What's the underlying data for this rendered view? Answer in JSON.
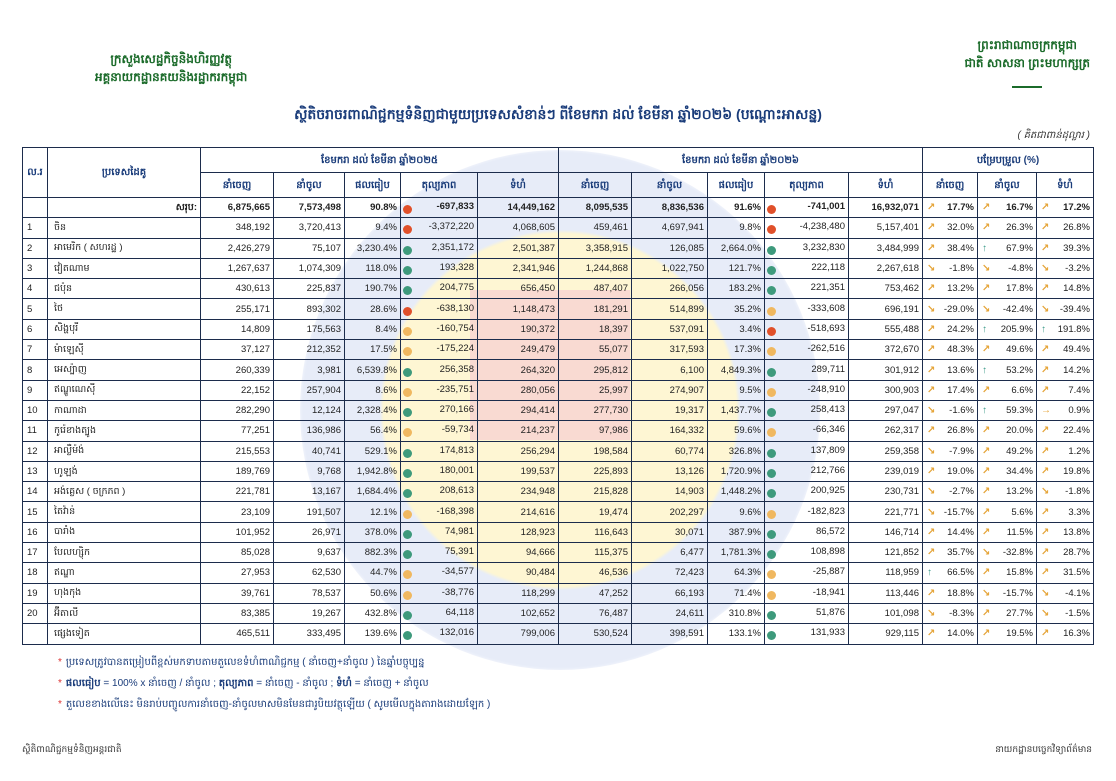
{
  "header": {
    "ministry": "ក្រសួងសេដ្ឋកិច្ចនិងហិរញ្ញវត្ថុ",
    "department": "អគ្គនាយកដ្ឋានគយនិងរដ្ឋាករកម្ពុជា",
    "kingdom": "ព្រះរាជាណាចក្រកម្ពុជា",
    "motto": "ជាតិ សាសនា ព្រះមហាក្សត្រ",
    "title": "ស្ថិតិចរាចរពាណិជ្ជកម្មទំនិញជាមួយប្រទេសសំខាន់ៗ ពីខែមករា ដល់ ខែមីនា ឆ្នាំ២០២៦ (បណ្ដោះអាសន្ន)",
    "unit": "( គិតជាពាន់ដុល្លារ )"
  },
  "table": {
    "col_no": "ល.រ",
    "col_country": "ប្រទេសដៃគូ",
    "period_2025": "ខែមករា ដល់ ខែមីនា ឆ្នាំ២០២៥",
    "period_2026": "ខែមករា ដល់ ខែមីនា ឆ្នាំ២០២៦",
    "change": "បម្រែបម្រួល (%)",
    "exp": "នាំចេញ",
    "imp": "នាំចូល",
    "ratio": "ផលធៀប",
    "balance": "តុល្យភាព",
    "size": "ទំហំ",
    "total_label": "សរុប:",
    "colors": {
      "red": "#e0502a",
      "green": "#3e9a7c",
      "orange": "#f0b860",
      "arrow_orange": "#e5a336",
      "arrow_teal": "#3a9a88"
    },
    "rows": [
      {
        "no": "",
        "country": "",
        "total": true,
        "y25": [
          "6,875,665",
          "7,573,498",
          "90.8%",
          "-697,833",
          "14,449,162"
        ],
        "d25": "red",
        "y26": [
          "8,095,535",
          "8,836,536",
          "91.6%",
          "-741,001",
          "16,932,071"
        ],
        "d26": "red",
        "ch": [
          "17.7%",
          "16.7%",
          "17.2%"
        ],
        "a": [
          "up-right",
          "up-right",
          "up-right"
        ]
      },
      {
        "no": "1",
        "country": "ចិន",
        "y25": [
          "348,192",
          "3,720,413",
          "9.4%",
          "-3,372,220",
          "4,068,605"
        ],
        "d25": "red",
        "y26": [
          "459,461",
          "4,697,941",
          "9.8%",
          "-4,238,480",
          "5,157,401"
        ],
        "d26": "red",
        "ch": [
          "32.0%",
          "26.3%",
          "26.8%"
        ],
        "a": [
          "up-right",
          "up-right",
          "up-right"
        ]
      },
      {
        "no": "2",
        "country": "អាមេរិក ( សហរដ្ឋ )",
        "y25": [
          "2,426,279",
          "75,107",
          "3,230.4%",
          "2,351,172",
          "2,501,387"
        ],
        "d25": "green",
        "y26": [
          "3,358,915",
          "126,085",
          "2,664.0%",
          "3,232,830",
          "3,484,999"
        ],
        "d26": "green",
        "ch": [
          "38.4%",
          "67.9%",
          "39.3%"
        ],
        "a": [
          "up-right",
          "up",
          "up-right"
        ]
      },
      {
        "no": "3",
        "country": "វៀតណាម",
        "y25": [
          "1,267,637",
          "1,074,309",
          "118.0%",
          "193,328",
          "2,341,946"
        ],
        "d25": "green",
        "y26": [
          "1,244,868",
          "1,022,750",
          "121.7%",
          "222,118",
          "2,267,618"
        ],
        "d26": "green",
        "ch": [
          "-1.8%",
          "-4.8%",
          "-3.2%"
        ],
        "a": [
          "down-right",
          "down-right",
          "down-right"
        ]
      },
      {
        "no": "4",
        "country": "ជប៉ុន",
        "y25": [
          "430,613",
          "225,837",
          "190.7%",
          "204,775",
          "656,450"
        ],
        "d25": "green",
        "y26": [
          "487,407",
          "266,056",
          "183.2%",
          "221,351",
          "753,462"
        ],
        "d26": "green",
        "ch": [
          "13.2%",
          "17.8%",
          "14.8%"
        ],
        "a": [
          "up-right",
          "up-right",
          "up-right"
        ]
      },
      {
        "no": "5",
        "country": "ថៃ",
        "y25": [
          "255,171",
          "893,302",
          "28.6%",
          "-638,130",
          "1,148,473"
        ],
        "d25": "red",
        "y26": [
          "181,291",
          "514,899",
          "35.2%",
          "-333,608",
          "696,191"
        ],
        "d26": "orange",
        "ch": [
          "-29.0%",
          "-42.4%",
          "-39.4%"
        ],
        "a": [
          "down-right",
          "down-right",
          "down-right"
        ]
      },
      {
        "no": "6",
        "country": "សិង្ហបុរី",
        "y25": [
          "14,809",
          "175,563",
          "8.4%",
          "-160,754",
          "190,372"
        ],
        "d25": "orange",
        "y26": [
          "18,397",
          "537,091",
          "3.4%",
          "-518,693",
          "555,488"
        ],
        "d26": "red",
        "ch": [
          "24.2%",
          "205.9%",
          "191.8%"
        ],
        "a": [
          "up-right",
          "up",
          "up"
        ]
      },
      {
        "no": "7",
        "country": "ម៉ាឡេស៊ី",
        "y25": [
          "37,127",
          "212,352",
          "17.5%",
          "-175,224",
          "249,479"
        ],
        "d25": "orange",
        "y26": [
          "55,077",
          "317,593",
          "17.3%",
          "-262,516",
          "372,670"
        ],
        "d26": "orange",
        "ch": [
          "48.3%",
          "49.6%",
          "49.4%"
        ],
        "a": [
          "up-right",
          "up-right",
          "up-right"
        ]
      },
      {
        "no": "8",
        "country": "អេស្ប៉ាញ",
        "y25": [
          "260,339",
          "3,981",
          "6,539.8%",
          "256,358",
          "264,320"
        ],
        "d25": "green",
        "y26": [
          "295,812",
          "6,100",
          "4,849.3%",
          "289,711",
          "301,912"
        ],
        "d26": "green",
        "ch": [
          "13.6%",
          "53.2%",
          "14.2%"
        ],
        "a": [
          "up-right",
          "up",
          "up-right"
        ]
      },
      {
        "no": "9",
        "country": "ឥណ្ឌូណេស៊ី",
        "y25": [
          "22,152",
          "257,904",
          "8.6%",
          "-235,751",
          "280,056"
        ],
        "d25": "orange",
        "y26": [
          "25,997",
          "274,907",
          "9.5%",
          "-248,910",
          "300,903"
        ],
        "d26": "orange",
        "ch": [
          "17.4%",
          "6.6%",
          "7.4%"
        ],
        "a": [
          "up-right",
          "up-right",
          "up-right"
        ]
      },
      {
        "no": "10",
        "country": "កាណាដា",
        "y25": [
          "282,290",
          "12,124",
          "2,328.4%",
          "270,166",
          "294,414"
        ],
        "d25": "green",
        "y26": [
          "277,730",
          "19,317",
          "1,437.7%",
          "258,413",
          "297,047"
        ],
        "d26": "green",
        "ch": [
          "-1.6%",
          "59.3%",
          "0.9%"
        ],
        "a": [
          "down-right",
          "up",
          "right"
        ]
      },
      {
        "no": "11",
        "country": "កូរ៉េខាងត្បូង",
        "y25": [
          "77,251",
          "136,986",
          "56.4%",
          "-59,734",
          "214,237"
        ],
        "d25": "orange",
        "y26": [
          "97,986",
          "164,332",
          "59.6%",
          "-66,346",
          "262,317"
        ],
        "d26": "orange",
        "ch": [
          "26.8%",
          "20.0%",
          "22.4%"
        ],
        "a": [
          "up-right",
          "up-right",
          "up-right"
        ]
      },
      {
        "no": "12",
        "country": "អាល្លឺម៉ង់",
        "y25": [
          "215,553",
          "40,741",
          "529.1%",
          "174,813",
          "256,294"
        ],
        "d25": "green",
        "y26": [
          "198,584",
          "60,774",
          "326.8%",
          "137,809",
          "259,358"
        ],
        "d26": "green",
        "ch": [
          "-7.9%",
          "49.2%",
          "1.2%"
        ],
        "a": [
          "down-right",
          "up-right",
          "up-right"
        ]
      },
      {
        "no": "13",
        "country": "ហូឡង់",
        "y25": [
          "189,769",
          "9,768",
          "1,942.8%",
          "180,001",
          "199,537"
        ],
        "d25": "green",
        "y26": [
          "225,893",
          "13,126",
          "1,720.9%",
          "212,766",
          "239,019"
        ],
        "d26": "green",
        "ch": [
          "19.0%",
          "34.4%",
          "19.8%"
        ],
        "a": [
          "up-right",
          "up-right",
          "up-right"
        ]
      },
      {
        "no": "14",
        "country": "អង់គ្លេស ( ចក្រភព )",
        "y25": [
          "221,781",
          "13,167",
          "1,684.4%",
          "208,613",
          "234,948"
        ],
        "d25": "green",
        "y26": [
          "215,828",
          "14,903",
          "1,448.2%",
          "200,925",
          "230,731"
        ],
        "d26": "green",
        "ch": [
          "-2.7%",
          "13.2%",
          "-1.8%"
        ],
        "a": [
          "down-right",
          "up-right",
          "down-right"
        ]
      },
      {
        "no": "15",
        "country": "តៃវ៉ាន់",
        "y25": [
          "23,109",
          "191,507",
          "12.1%",
          "-168,398",
          "214,616"
        ],
        "d25": "orange",
        "y26": [
          "19,474",
          "202,297",
          "9.6%",
          "-182,823",
          "221,771"
        ],
        "d26": "orange",
        "ch": [
          "-15.7%",
          "5.6%",
          "3.3%"
        ],
        "a": [
          "down-right",
          "up-right",
          "up-right"
        ]
      },
      {
        "no": "16",
        "country": "បារាំង",
        "y25": [
          "101,952",
          "26,971",
          "378.0%",
          "74,981",
          "128,923"
        ],
        "d25": "green",
        "y26": [
          "116,643",
          "30,071",
          "387.9%",
          "86,572",
          "146,714"
        ],
        "d26": "green",
        "ch": [
          "14.4%",
          "11.5%",
          "13.8%"
        ],
        "a": [
          "up-right",
          "up-right",
          "up-right"
        ]
      },
      {
        "no": "17",
        "country": "បែលហ្ស៊ិក",
        "y25": [
          "85,028",
          "9,637",
          "882.3%",
          "75,391",
          "94,666"
        ],
        "d25": "green",
        "y26": [
          "115,375",
          "6,477",
          "1,781.3%",
          "108,898",
          "121,852"
        ],
        "d26": "green",
        "ch": [
          "35.7%",
          "-32.8%",
          "28.7%"
        ],
        "a": [
          "up-right",
          "down-right",
          "up-right"
        ]
      },
      {
        "no": "18",
        "country": "ឥណ្ឌា",
        "y25": [
          "27,953",
          "62,530",
          "44.7%",
          "-34,577",
          "90,484"
        ],
        "d25": "orange",
        "y26": [
          "46,536",
          "72,423",
          "64.3%",
          "-25,887",
          "118,959"
        ],
        "d26": "orange",
        "ch": [
          "66.5%",
          "15.8%",
          "31.5%"
        ],
        "a": [
          "up",
          "up-right",
          "up-right"
        ]
      },
      {
        "no": "19",
        "country": "ហុងកុង",
        "y25": [
          "39,761",
          "78,537",
          "50.6%",
          "-38,776",
          "118,299"
        ],
        "d25": "orange",
        "y26": [
          "47,252",
          "66,193",
          "71.4%",
          "-18,941",
          "113,446"
        ],
        "d26": "orange",
        "ch": [
          "18.8%",
          "-15.7%",
          "-4.1%"
        ],
        "a": [
          "up-right",
          "down-right",
          "down-right"
        ]
      },
      {
        "no": "20",
        "country": "អ៊ីតាលី",
        "y25": [
          "83,385",
          "19,267",
          "432.8%",
          "64,118",
          "102,652"
        ],
        "d25": "green",
        "y26": [
          "76,487",
          "24,611",
          "310.8%",
          "51,876",
          "101,098"
        ],
        "d26": "green",
        "ch": [
          "-8.3%",
          "27.7%",
          "-1.5%"
        ],
        "a": [
          "down-right",
          "up-right",
          "down-right"
        ]
      },
      {
        "no": "",
        "country": "ផ្សេងទៀត",
        "y25": [
          "465,511",
          "333,495",
          "139.6%",
          "132,016",
          "799,006"
        ],
        "d25": "green",
        "y26": [
          "530,524",
          "398,591",
          "133.1%",
          "131,933",
          "929,115"
        ],
        "d26": "green",
        "ch": [
          "14.0%",
          "19.5%",
          "16.3%"
        ],
        "a": [
          "up-right",
          "up-right",
          "up-right"
        ]
      }
    ]
  },
  "notes": {
    "n1": "ប្រទេសត្រូវបានតម្រៀបពីខ្ពស់មកទាបតាមតួលេខទំហំពាណិជ្ជកម្ម ( នាំចេញ+នាំចូល ) នៃឆ្នាំបច្ចុប្បន្ន",
    "n2_ratio": "ផលធៀប",
    "n2_ratio_def": " = 100% x នាំចេញ  / នាំចូល ; ",
    "n2_balance": "តុល្យភាព",
    "n2_balance_def": " = នាំចេញ  - នាំចូល ; ",
    "n2_size": "ទំហំ",
    "n2_size_def": " = នាំចេញ + នាំចូល",
    "n3": "តួលេខខាងលើនេះ មិនរាប់បញ្ចូលការនាំចេញ-នាំចូលមាសមិនមែនជារូបិយវត្ថុឡើយ ( សូមមើលក្នុងតារាងដោយឡែក )"
  },
  "footer": {
    "left": "ស្ថិតិពាណិជ្ជកម្មទំនិញអន្តរជាតិ",
    "right": "នាយកដ្ឋានបច្ចេកវិទ្យាព័ត៌មាន"
  }
}
